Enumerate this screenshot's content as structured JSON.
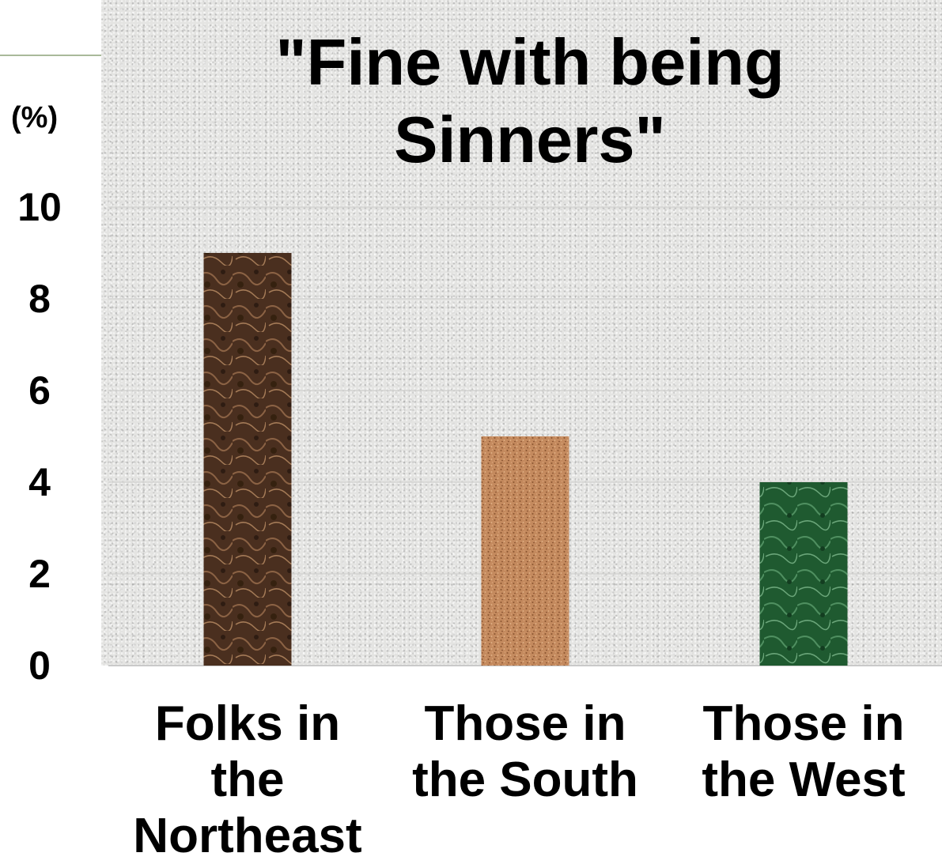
{
  "chart_data": {
    "type": "bar",
    "title": "\"Fine with being Sinners\"",
    "ylabel": "(%)",
    "xlabel": "",
    "categories": [
      "Folks in the Northeast",
      "Those in the South",
      "Those in the West"
    ],
    "values": [
      9,
      5,
      4
    ],
    "ylim": [
      0,
      10
    ],
    "yticks": [
      "0",
      "2",
      "4",
      "6",
      "8",
      "10"
    ],
    "grid": true,
    "legend": "none",
    "colors": [
      "#4a2f1f",
      "#c48a5e",
      "#1f5a30"
    ]
  }
}
